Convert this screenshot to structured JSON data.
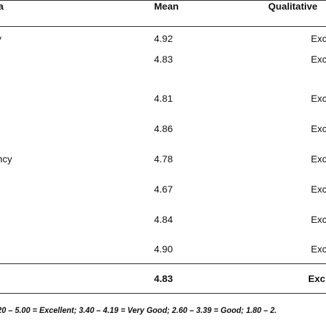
{
  "table": {
    "headers": {
      "criteria": "ria",
      "mean": "Mean",
      "qualitative": "Qualitative"
    },
    "rows": [
      {
        "criteria": "ity",
        "mean": "4.92",
        "qualitative": "Exc"
      },
      {
        "criteria": "",
        "mean": "4.83",
        "qualitative": "Exc"
      },
      {
        "criteria": "",
        "mean": "4.81",
        "qualitative": "Exc"
      },
      {
        "criteria": "",
        "mean": "4.86",
        "qualitative": "Exc"
      },
      {
        "criteria": "ency",
        "mean": "4.78",
        "qualitative": "Exc"
      },
      {
        "criteria": "",
        "mean": "4.67",
        "qualitative": "Exc"
      },
      {
        "criteria": "",
        "mean": "4.84",
        "qualitative": "Exc"
      },
      {
        "criteria": "",
        "mean": "4.90",
        "qualitative": "Exc"
      }
    ],
    "total": {
      "mean": "4.83",
      "qualitative": "Exc"
    },
    "note": "20 – 5.00 = Excellent; 3.40 – 4.19 = Very Good; 2.60 – 3.39 = Good; 1.80 – 2."
  }
}
